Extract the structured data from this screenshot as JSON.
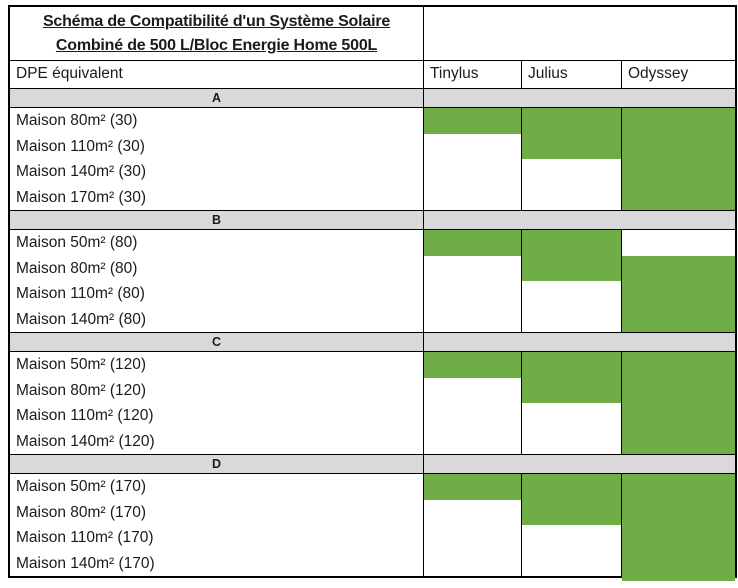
{
  "colors": {
    "compatible_green": "#70AD47",
    "band_grey": "#D9D9D9",
    "border_black": "#000000"
  },
  "chart_data": {
    "type": "table",
    "title_line1": "Schéma de Compatibilité d'un Système Solaire",
    "title_line2": "Combiné de 500 L/Bloc Energie Home 500L",
    "row_header": "DPE équivalent",
    "columns": [
      "Tinylus",
      "Julius",
      "Odyssey"
    ],
    "cell_encoding": "green fill = compatible, white = not compatible",
    "groups": [
      {
        "label": "A",
        "rows": [
          {
            "name": "Maison 80m² (30)",
            "compatible": [
              true,
              true,
              true
            ]
          },
          {
            "name": "Maison 110m² (30)",
            "compatible": [
              false,
              true,
              true
            ]
          },
          {
            "name": "Maison 140m² (30)",
            "compatible": [
              false,
              false,
              true
            ]
          },
          {
            "name": "Maison 170m² (30)",
            "compatible": [
              false,
              false,
              true
            ]
          }
        ]
      },
      {
        "label": "B",
        "rows": [
          {
            "name": "Maison 50m² (80)",
            "compatible": [
              true,
              true,
              false
            ]
          },
          {
            "name": "Maison 80m² (80)",
            "compatible": [
              false,
              true,
              true
            ]
          },
          {
            "name": "Maison 110m² (80)",
            "compatible": [
              false,
              false,
              true
            ]
          },
          {
            "name": "Maison 140m² (80)",
            "compatible": [
              false,
              false,
              true
            ]
          }
        ]
      },
      {
        "label": "C",
        "rows": [
          {
            "name": "Maison 50m² (120)",
            "compatible": [
              true,
              true,
              true
            ]
          },
          {
            "name": "Maison 80m² (120)",
            "compatible": [
              false,
              true,
              true
            ]
          },
          {
            "name": "Maison 110m² (120)",
            "compatible": [
              false,
              false,
              true
            ]
          },
          {
            "name": "Maison 140m² (120)",
            "compatible": [
              false,
              false,
              true
            ]
          }
        ]
      },
      {
        "label": "D",
        "rows": [
          {
            "name": "Maison 50m² (170)",
            "compatible": [
              true,
              true,
              true
            ]
          },
          {
            "name": "Maison 80m² (170)",
            "compatible": [
              false,
              true,
              true
            ]
          },
          {
            "name": "Maison 110m² (170)",
            "compatible": [
              false,
              false,
              true
            ]
          },
          {
            "name": "Maison 140m² (170)",
            "compatible": [
              false,
              false,
              true
            ]
          }
        ]
      }
    ]
  }
}
